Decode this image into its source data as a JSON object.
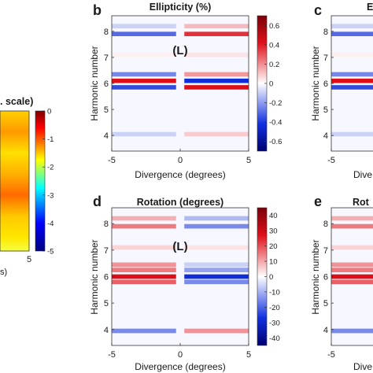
{
  "chart_data": [
    {
      "panel": "",
      "type": "heatmap",
      "title": ". scale)",
      "xlabel": "s)",
      "ylabel": "",
      "xticks_visible": [
        "5"
      ],
      "colorbar": {
        "ticks": [
          "0",
          "-1",
          "-2",
          "-3",
          "-4",
          "-5"
        ],
        "range": [
          -5,
          0
        ],
        "colormap": "jet"
      }
    },
    {
      "panel": "b",
      "type": "heatmap",
      "title": "Ellipticity (%)",
      "annotation": "(L)",
      "xlabel": "Divergence (degrees)",
      "ylabel": "Harmonic number",
      "xlim": [
        -5,
        5
      ],
      "ylim": [
        3.4,
        8.6
      ],
      "xticks": [
        "-5",
        "0",
        "5"
      ],
      "yticks": [
        "4",
        "5",
        "6",
        "7",
        "8"
      ],
      "colorbar": {
        "ticks": [
          "0.6",
          "0.4",
          "0.2",
          "0",
          "-0.2",
          "-0.4",
          "-0.6"
        ],
        "range": [
          -0.7,
          0.7
        ],
        "colormap": "blue-white-red"
      },
      "bands": [
        {
          "harmonic": 8.2,
          "left": -0.15,
          "right": 0.2
        },
        {
          "harmonic": 7.9,
          "left": -0.5,
          "right": 0.6
        },
        {
          "harmonic": 7.1,
          "left": 0.05,
          "right": 0.08
        },
        {
          "harmonic": 6.35,
          "left": -0.4,
          "right": 0.3
        },
        {
          "harmonic": 6.1,
          "left": 0.7,
          "right": -0.7
        },
        {
          "harmonic": 5.85,
          "left": -0.6,
          "right": 0.7
        },
        {
          "harmonic": 4.05,
          "left": -0.15,
          "right": 0.15
        }
      ]
    },
    {
      "panel": "c",
      "type": "heatmap",
      "title": "E",
      "xlabel": "Dive",
      "ylabel": "Harmonic number",
      "yticks": [
        "4",
        "5",
        "6",
        "7",
        "8"
      ],
      "xticks_visible": [
        "-5"
      ]
    },
    {
      "panel": "d",
      "type": "heatmap",
      "title": "Rotation (degrees)",
      "annotation": "(L)",
      "xlabel": "Divergence (degrees)",
      "ylabel": "Harmonic number",
      "xlim": [
        -5,
        5
      ],
      "ylim": [
        3.4,
        8.6
      ],
      "xticks": [
        "-5",
        "0",
        "5"
      ],
      "yticks": [
        "4",
        "5",
        "6",
        "7",
        "8"
      ],
      "colorbar": {
        "ticks": [
          "40",
          "30",
          "20",
          "10",
          "0",
          "-10",
          "-20",
          "-30",
          "-40"
        ],
        "range": [
          -45,
          45
        ],
        "colormap": "blue-white-red"
      },
      "bands": [
        {
          "harmonic": 8.2,
          "left": 15,
          "right": -15
        },
        {
          "harmonic": 7.9,
          "left": 25,
          "right": -25
        },
        {
          "harmonic": 7.1,
          "left": 8,
          "right": 5
        },
        {
          "harmonic": 6.45,
          "left": 20,
          "right": -10
        },
        {
          "harmonic": 6.25,
          "left": 25,
          "right": -20
        },
        {
          "harmonic": 6.0,
          "left": 45,
          "right": -45
        },
        {
          "harmonic": 5.8,
          "left": 30,
          "right": -25
        },
        {
          "harmonic": 3.95,
          "left": -25,
          "right": 20
        }
      ]
    },
    {
      "panel": "e",
      "type": "heatmap",
      "title": "Rot",
      "xlabel": "Dive",
      "ylabel": "Harmonic number",
      "yticks": [
        "4",
        "5",
        "6",
        "7",
        "8"
      ],
      "xticks_visible": [
        "-5"
      ]
    }
  ]
}
